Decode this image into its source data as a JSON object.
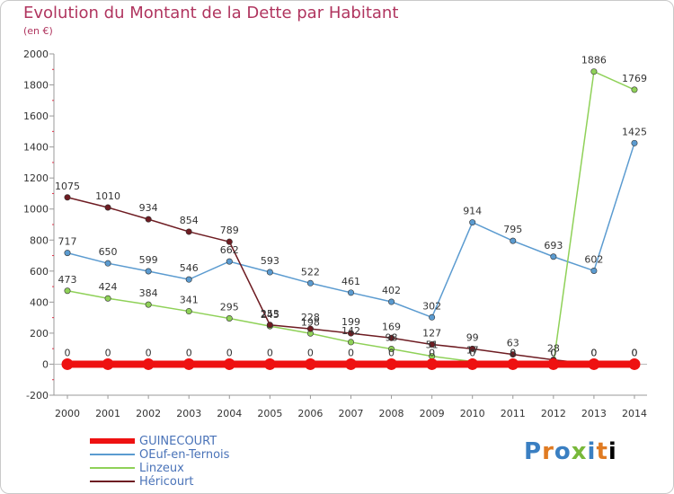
{
  "title": "Evolution du Montant de la Dette par Habitant",
  "subtitle": "(en €)",
  "brand": "Proxiti",
  "chart_data": {
    "type": "line",
    "x": [
      "2000",
      "2001",
      "2002",
      "2003",
      "2004",
      "2005",
      "2006",
      "2007",
      "2008",
      "2009",
      "2010",
      "2011",
      "2012",
      "2013",
      "2014"
    ],
    "ylim": [
      -200,
      2000
    ],
    "yticks": [
      -200,
      0,
      200,
      400,
      600,
      800,
      1000,
      1200,
      1400,
      1600,
      1800,
      2000
    ],
    "grid": false,
    "legend_position": "bottom-left",
    "series": [
      {
        "name": "GUINECOURT",
        "color": "#ee1111",
        "values": [
          0,
          0,
          0,
          0,
          0,
          0,
          0,
          0,
          0,
          0,
          0,
          0,
          0,
          0,
          0
        ],
        "labels": [
          "0",
          "0",
          "0",
          "0",
          "0",
          "0",
          "0",
          "0",
          "0",
          "0",
          "0",
          "0",
          "0",
          "0",
          "0"
        ]
      },
      {
        "name": "OEuf-en-Ternois",
        "color": "#5b9bd0",
        "values": [
          717,
          650,
          599,
          546,
          662,
          593,
          522,
          461,
          402,
          302,
          914,
          795,
          693,
          602,
          1425
        ],
        "labels": [
          "717",
          "650",
          "599",
          "546",
          "662",
          "593",
          "522",
          "461",
          "402",
          "302",
          "914",
          "795",
          "693",
          "602",
          "1425"
        ]
      },
      {
        "name": "Linzeux",
        "color": "#8fd158",
        "values": [
          473,
          424,
          384,
          341,
          295,
          245,
          198,
          142,
          98,
          51,
          17,
          0,
          0,
          1886,
          1769
        ],
        "labels": [
          "473",
          "424",
          "384",
          "341",
          "295",
          "245",
          "198",
          "142",
          "98",
          "51",
          "17",
          "0",
          "0",
          "1886",
          "1769"
        ]
      },
      {
        "name": "Héricourt",
        "color": "#6e1c22",
        "values": [
          1075,
          1010,
          934,
          854,
          789,
          253,
          228,
          199,
          169,
          127,
          99,
          63,
          28,
          0,
          0
        ],
        "labels": [
          "1075",
          "1010",
          "934",
          "854",
          "789",
          "253",
          "228",
          "199",
          "169",
          "127",
          "99",
          "63",
          "28",
          "0",
          "0"
        ]
      }
    ]
  }
}
